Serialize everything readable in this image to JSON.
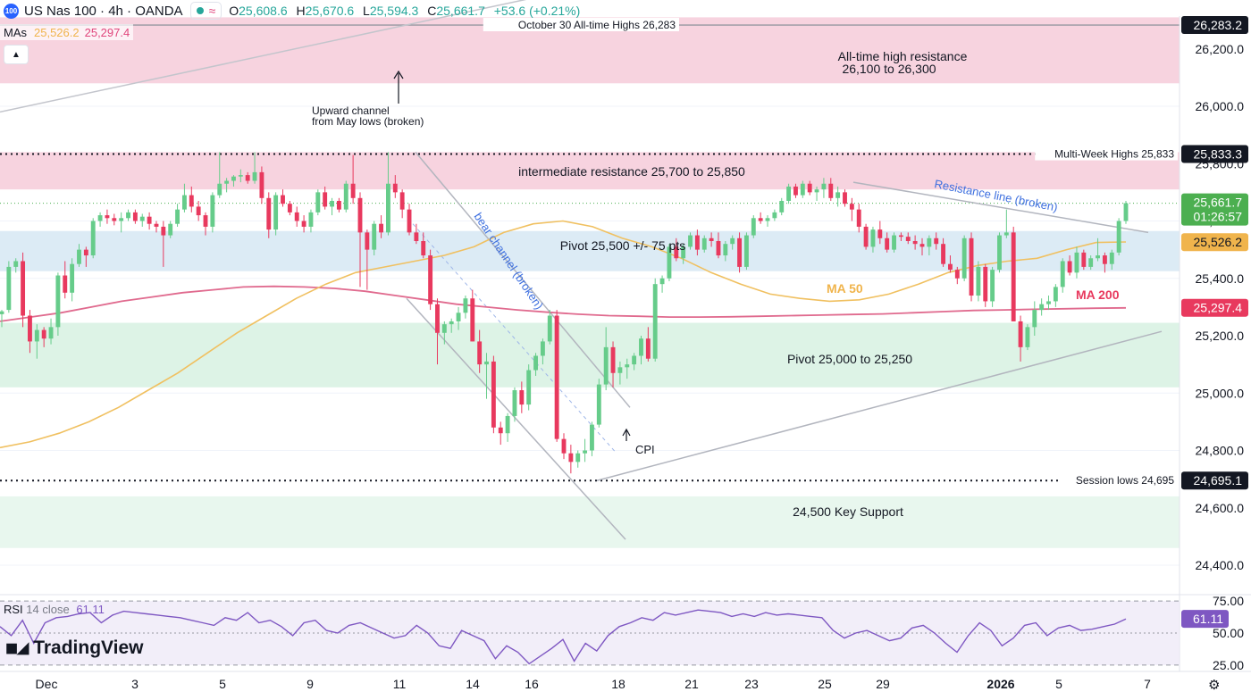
{
  "header": {
    "logo": "100",
    "symbol": "US Nas 100 · 4h · OANDA",
    "ohlc": [
      {
        "k": "O",
        "v": "25,608.6"
      },
      {
        "k": "H",
        "v": "25,670.6"
      },
      {
        "k": "L",
        "v": "25,594.3"
      },
      {
        "k": "C",
        "v": "25,661.7"
      },
      {
        "k": "",
        "v": "+53.6 (+0.21%)"
      }
    ],
    "status_icon": "market-open-dot",
    "approx_icon": "≈"
  },
  "mas_legend": {
    "label": "MAs",
    "ma50": "25,526.2",
    "ma200": "25,297.4"
  },
  "rsi_legend": {
    "label": "RSI",
    "params": "14 close",
    "value": "61.11"
  },
  "brand": {
    "mark": "◼◢",
    "name": "TradingView"
  },
  "colors": {
    "up": "#66cc8a",
    "down": "#e8395e",
    "ma50": "#f0c060",
    "ma200": "#e06a8e",
    "rsi": "#7e57c2",
    "zone_red": "#f7d3df",
    "zone_blue": "#dcebf5",
    "zone_green": "#ddf3e6",
    "zone_green_light": "#e8f7ee",
    "trendline": "#b2b5be",
    "blue_text": "#3d6fdf"
  },
  "chart_data": {
    "type": "candlestick",
    "title": "US Nas 100 · 4h · OANDA",
    "ylim": [
      24300,
      26350
    ],
    "x_ticks": [
      "Dec",
      "3",
      "5",
      "9",
      "11",
      "14",
      "16",
      "18",
      "21",
      "23",
      "25",
      "29",
      "2026",
      "5",
      "7"
    ],
    "y_ticks": [
      "26,200.0",
      "26,000.0",
      "25,800.0",
      "25,600.0",
      "25,400.0",
      "25,200.0",
      "25,000.0",
      "24,800.0",
      "24,600.0",
      "24,400.0"
    ],
    "y_tick_values": [
      26200,
      26000,
      25800,
      25600,
      25400,
      25200,
      25000,
      24800,
      24600,
      24400
    ],
    "price_labels": [
      {
        "text": "26,283.2",
        "value": 26283.2,
        "bg": "#131722",
        "fg": "#ffffff"
      },
      {
        "text": "25,833.3",
        "value": 25833.3,
        "bg": "#131722",
        "fg": "#ffffff"
      },
      {
        "text": "25,661.7",
        "sub": "01:26:57",
        "value": 25661.7,
        "bg": "#4caf50",
        "fg": "#ffffff"
      },
      {
        "text": "25,526.2",
        "value": 25526.2,
        "bg": "#f0b44c",
        "fg": "#131722"
      },
      {
        "text": "25,297.4",
        "value": 25297.4,
        "bg": "#e8395e",
        "fg": "#ffffff"
      },
      {
        "text": "24,695.1",
        "value": 24695.1,
        "bg": "#131722",
        "fg": "#ffffff"
      }
    ],
    "zones": [
      {
        "name": "all-time-high-resistance",
        "from": 26080,
        "to": 26310,
        "kind": "red",
        "label": "All-time high resistance",
        "label2": "26,100 to 26,300"
      },
      {
        "name": "intermediate-resistance",
        "from": 25710,
        "to": 25840,
        "kind": "red",
        "label": "intermediate resistance 25,700 to 25,850"
      },
      {
        "name": "pivot-25500",
        "from": 25425,
        "to": 25565,
        "kind": "blue",
        "label": "Pivot 25,500 +/- 75 pts"
      },
      {
        "name": "pivot-25000-25250",
        "from": 25020,
        "to": 25245,
        "kind": "green",
        "label": "Pivot 25,000 to 25,250"
      },
      {
        "name": "key-support-24500",
        "from": 24460,
        "to": 24640,
        "kind": "green_light",
        "label": "24,500 Key Support"
      }
    ],
    "hlines": [
      {
        "value": 26283.2,
        "label": "October 30 All-time Highs 26,283",
        "style": "solid"
      },
      {
        "value": 25833.3,
        "label": "Multi-Week Highs 25,833",
        "style": "dotted"
      },
      {
        "value": 24695.1,
        "label": "Session lows 24,695",
        "style": "dotted"
      },
      {
        "value": 25661.7,
        "label": "",
        "style": "dotted-green"
      }
    ],
    "annotations": [
      {
        "text": "Upward channel",
        "text2": "from May lows (broken)"
      },
      {
        "text": "bear channel (broken)"
      },
      {
        "text": "Resistance line (broken)"
      },
      {
        "text": "CPI"
      },
      {
        "text": "MA 50"
      },
      {
        "text": "MA 200"
      }
    ],
    "candles": [
      [
        25275,
        25290,
        25230,
        25285
      ],
      [
        25290,
        25460,
        25280,
        25440
      ],
      [
        25440,
        25470,
        25420,
        25460
      ],
      [
        25460,
        25490,
        25230,
        25270
      ],
      [
        25270,
        25290,
        25140,
        25180
      ],
      [
        25180,
        25240,
        25120,
        25220
      ],
      [
        25220,
        25230,
        25160,
        25190
      ],
      [
        25190,
        25260,
        25170,
        25230
      ],
      [
        25230,
        25420,
        25200,
        25410
      ],
      [
        25410,
        25460,
        25330,
        25350
      ],
      [
        25350,
        25470,
        25320,
        25450
      ],
      [
        25450,
        25520,
        25440,
        25500
      ],
      [
        25500,
        25510,
        25440,
        25480
      ],
      [
        25480,
        25610,
        25470,
        25600
      ],
      [
        25600,
        25630,
        25580,
        25620
      ],
      [
        25620,
        25640,
        25590,
        25610
      ],
      [
        25610,
        25625,
        25585,
        25600
      ],
      [
        25600,
        25630,
        25560,
        25610
      ],
      [
        25610,
        25640,
        25600,
        25630
      ],
      [
        25630,
        25640,
        25590,
        25600
      ],
      [
        25600,
        25625,
        25580,
        25615
      ],
      [
        25615,
        25630,
        25570,
        25590
      ],
      [
        25590,
        25600,
        25560,
        25580
      ],
      [
        25580,
        25600,
        25440,
        25550
      ],
      [
        25550,
        25600,
        25540,
        25590
      ],
      [
        25590,
        25660,
        25580,
        25640
      ],
      [
        25640,
        25730,
        25630,
        25690
      ],
      [
        25690,
        25720,
        25630,
        25650
      ],
      [
        25650,
        25670,
        25600,
        25620
      ],
      [
        25620,
        25630,
        25550,
        25580
      ],
      [
        25580,
        25700,
        25560,
        25690
      ],
      [
        25690,
        25840,
        25680,
        25730
      ],
      [
        25730,
        25750,
        25700,
        25740
      ],
      [
        25740,
        25760,
        25720,
        25755
      ],
      [
        25755,
        25780,
        25735,
        25760
      ],
      [
        25760,
        25770,
        25730,
        25740
      ],
      [
        25740,
        25840,
        25730,
        25770
      ],
      [
        25770,
        25790,
        25660,
        25680
      ],
      [
        25680,
        25700,
        25540,
        25570
      ],
      [
        25570,
        25700,
        25550,
        25690
      ],
      [
        25690,
        25710,
        25650,
        25660
      ],
      [
        25660,
        25670,
        25620,
        25630
      ],
      [
        25630,
        25650,
        25580,
        25600
      ],
      [
        25600,
        25620,
        25560,
        25580
      ],
      [
        25580,
        25640,
        25560,
        25630
      ],
      [
        25630,
        25710,
        25620,
        25700
      ],
      [
        25700,
        25720,
        25640,
        25650
      ],
      [
        25650,
        25680,
        25620,
        25670
      ],
      [
        25670,
        25680,
        25630,
        25640
      ],
      [
        25640,
        25740,
        25630,
        25730
      ],
      [
        25730,
        25830,
        25660,
        25680
      ],
      [
        25680,
        25700,
        25370,
        25560
      ],
      [
        25560,
        25570,
        25360,
        25500
      ],
      [
        25500,
        25600,
        25480,
        25590
      ],
      [
        25590,
        25620,
        25540,
        25560
      ],
      [
        25560,
        25840,
        25550,
        25730
      ],
      [
        25730,
        25760,
        25680,
        25700
      ],
      [
        25700,
        25710,
        25610,
        25640
      ],
      [
        25640,
        25660,
        25550,
        25560
      ],
      [
        25560,
        25590,
        25520,
        25530
      ],
      [
        25530,
        25560,
        25470,
        25480
      ],
      [
        25480,
        25500,
        25290,
        25310
      ],
      [
        25310,
        25330,
        25100,
        25210
      ],
      [
        25210,
        25250,
        25170,
        25240
      ],
      [
        25240,
        25260,
        25210,
        25250
      ],
      [
        25250,
        25300,
        25220,
        25280
      ],
      [
        25280,
        25340,
        25260,
        25330
      ],
      [
        25330,
        25360,
        25180,
        25180
      ],
      [
        25180,
        25220,
        25070,
        25100
      ],
      [
        25100,
        25140,
        24980,
        25110
      ],
      [
        25110,
        25130,
        24860,
        24880
      ],
      [
        24880,
        24900,
        24820,
        24860
      ],
      [
        24860,
        24930,
        24830,
        24920
      ],
      [
        24920,
        25020,
        24900,
        25010
      ],
      [
        25010,
        25040,
        24930,
        24960
      ],
      [
        24960,
        25100,
        24940,
        25080
      ],
      [
        25080,
        25140,
        25060,
        25130
      ],
      [
        25130,
        25190,
        25100,
        25180
      ],
      [
        25180,
        25290,
        25170,
        25270
      ],
      [
        25270,
        25290,
        24830,
        24840
      ],
      [
        24840,
        24860,
        24770,
        24790
      ],
      [
        24790,
        24820,
        24720,
        24760
      ],
      [
        24760,
        24800,
        24740,
        24790
      ],
      [
        24790,
        24840,
        24760,
        24800
      ],
      [
        24800,
        24900,
        24780,
        24890
      ],
      [
        24890,
        25050,
        24880,
        25030
      ],
      [
        25030,
        25230,
        25010,
        25160
      ],
      [
        25160,
        25180,
        25020,
        25070
      ],
      [
        25070,
        25110,
        25030,
        25090
      ],
      [
        25090,
        25120,
        25050,
        25100
      ],
      [
        25100,
        25140,
        25080,
        25130
      ],
      [
        25130,
        25200,
        25100,
        25190
      ],
      [
        25190,
        25230,
        25110,
        25120
      ],
      [
        25120,
        25400,
        25110,
        25380
      ],
      [
        25380,
        25410,
        25350,
        25400
      ],
      [
        25400,
        25520,
        25390,
        25510
      ],
      [
        25510,
        25540,
        25460,
        25470
      ],
      [
        25470,
        25520,
        25450,
        25510
      ],
      [
        25510,
        25560,
        25500,
        25550
      ],
      [
        25550,
        25570,
        25480,
        25500
      ],
      [
        25500,
        25550,
        25490,
        25540
      ],
      [
        25540,
        25560,
        25510,
        25530
      ],
      [
        25530,
        25560,
        25470,
        25480
      ],
      [
        25480,
        25530,
        25460,
        25520
      ],
      [
        25520,
        25550,
        25500,
        25540
      ],
      [
        25540,
        25560,
        25420,
        25440
      ],
      [
        25440,
        25560,
        25430,
        25550
      ],
      [
        25550,
        25620,
        25540,
        25610
      ],
      [
        25610,
        25630,
        25590,
        25600
      ],
      [
        25600,
        25620,
        25580,
        25610
      ],
      [
        25610,
        25640,
        25600,
        25630
      ],
      [
        25630,
        25680,
        25620,
        25670
      ],
      [
        25670,
        25730,
        25660,
        25720
      ],
      [
        25720,
        25730,
        25680,
        25690
      ],
      [
        25690,
        25740,
        25680,
        25730
      ],
      [
        25730,
        25740,
        25690,
        25700
      ],
      [
        25700,
        25720,
        25670,
        25710
      ],
      [
        25710,
        25750,
        25680,
        25730
      ],
      [
        25730,
        25750,
        25670,
        25680
      ],
      [
        25680,
        25720,
        25650,
        25700
      ],
      [
        25700,
        25710,
        25650,
        25660
      ],
      [
        25660,
        25680,
        25600,
        25640
      ],
      [
        25640,
        25660,
        25560,
        25580
      ],
      [
        25580,
        25590,
        25500,
        25510
      ],
      [
        25510,
        25580,
        25490,
        25570
      ],
      [
        25570,
        25600,
        25520,
        25540
      ],
      [
        25540,
        25560,
        25490,
        25500
      ],
      [
        25500,
        25560,
        25490,
        25550
      ],
      [
        25550,
        25560,
        25530,
        25545
      ],
      [
        25545,
        25560,
        25520,
        25530
      ],
      [
        25530,
        25550,
        25500,
        25520
      ],
      [
        25520,
        25540,
        25480,
        25510
      ],
      [
        25510,
        25550,
        25480,
        25540
      ],
      [
        25540,
        25560,
        25500,
        25520
      ],
      [
        25520,
        25540,
        25440,
        25450
      ],
      [
        25450,
        25480,
        25420,
        25430
      ],
      [
        25430,
        25440,
        25380,
        25400
      ],
      [
        25400,
        25550,
        25390,
        25540
      ],
      [
        25540,
        25560,
        25320,
        25340
      ],
      [
        25340,
        25460,
        25320,
        25440
      ],
      [
        25440,
        25450,
        25300,
        25320
      ],
      [
        25320,
        25440,
        25300,
        25430
      ],
      [
        25430,
        25560,
        25420,
        25550
      ],
      [
        25550,
        25640,
        25540,
        25560
      ],
      [
        25560,
        25580,
        25250,
        25250
      ],
      [
        25250,
        25270,
        25110,
        25160
      ],
      [
        25160,
        25240,
        25150,
        25230
      ],
      [
        25230,
        25320,
        25200,
        25290
      ],
      [
        25290,
        25330,
        25270,
        25310
      ],
      [
        25310,
        25340,
        25290,
        25320
      ],
      [
        25320,
        25380,
        25300,
        25370
      ],
      [
        25370,
        25470,
        25350,
        25460
      ],
      [
        25460,
        25480,
        25410,
        25420
      ],
      [
        25420,
        25510,
        25400,
        25490
      ],
      [
        25490,
        25500,
        25430,
        25440
      ],
      [
        25440,
        25480,
        25430,
        25470
      ],
      [
        25470,
        25540,
        25460,
        25480
      ],
      [
        25480,
        25490,
        25420,
        25450
      ],
      [
        25450,
        25500,
        25430,
        25490
      ],
      [
        25490,
        25610,
        25480,
        25600
      ],
      [
        25600,
        25670,
        25590,
        25662
      ]
    ],
    "ma50": [
      24810,
      24830,
      24860,
      24900,
      24950,
      25010,
      25070,
      25140,
      25210,
      25270,
      25330,
      25380,
      25420,
      25440,
      25460,
      25480,
      25510,
      25560,
      25590,
      25600,
      25580,
      25540,
      25510,
      25470,
      25420,
      25380,
      25345,
      25330,
      25320,
      25325,
      25345,
      25380,
      25420,
      25445,
      25460,
      25470,
      25500,
      25525,
      25527
    ],
    "ma200": [
      25250,
      25265,
      25280,
      25300,
      25320,
      25335,
      25350,
      25360,
      25370,
      25372,
      25370,
      25365,
      25355,
      25340,
      25325,
      25310,
      25300,
      25290,
      25282,
      25275,
      25270,
      25268,
      25265,
      25265,
      25266,
      25268,
      25270,
      25272,
      25274,
      25276,
      25280,
      25284,
      25288,
      25290,
      25292,
      25294,
      25296,
      25297
    ],
    "rsi": [
      55,
      48,
      60,
      42,
      58,
      62,
      63,
      65,
      66,
      58,
      64,
      67,
      66,
      65,
      64,
      63,
      62,
      60,
      58,
      56,
      62,
      60,
      66,
      58,
      60,
      55,
      48,
      58,
      60,
      52,
      50,
      56,
      58,
      54,
      50,
      46,
      48,
      56,
      50,
      40,
      38,
      52,
      48,
      44,
      30,
      40,
      35,
      26,
      32,
      38,
      45,
      28,
      42,
      36,
      48,
      55,
      58,
      62,
      60,
      66,
      64,
      66,
      68,
      67,
      66,
      63,
      65,
      63,
      66,
      64,
      65,
      64,
      63,
      62,
      52,
      46,
      50,
      52,
      48,
      44,
      46,
      54,
      56,
      50,
      42,
      35,
      48,
      58,
      52,
      40,
      46,
      56,
      58,
      48,
      54,
      56,
      52,
      53,
      55,
      57,
      61
    ],
    "rsi_ylim": [
      20,
      80
    ],
    "rsi_ticks": [
      "75.00",
      "50.00",
      "25.00"
    ],
    "rsi_label_value": "61.11"
  }
}
